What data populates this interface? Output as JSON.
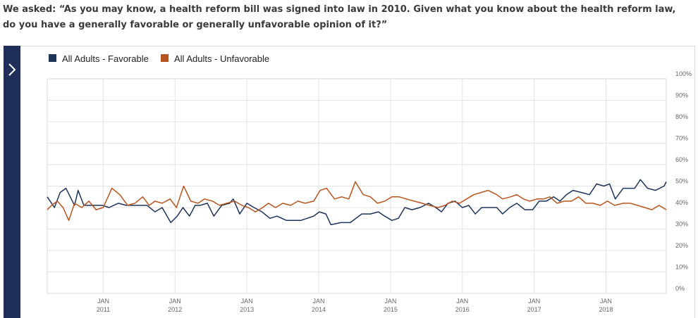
{
  "question": "We asked: “As you may know, a health reform bill was signed into law in 2010. Given what you know about the health reform law, do you have a generally favorable or generally unfavorable opinion of it?”",
  "colors": {
    "favorable": "#1c3458",
    "unfavorable": "#b5541f",
    "sidebar": "#1f2f5a",
    "grid": "#e3e3e3"
  },
  "sidebar_icon": "chevron-right-icon",
  "chart_data": {
    "type": "line",
    "legend_position": "top-left",
    "grid": true,
    "ylim": [
      0,
      100
    ],
    "y_tick_labels": [
      "0%",
      "10%",
      "20%",
      "30%",
      "40%",
      "50%",
      "60%",
      "70%",
      "80%",
      "90%",
      "100%"
    ],
    "x_tick_labels": [
      {
        "month": "JAN",
        "year": "2011",
        "x": 2011.0
      },
      {
        "month": "JAN",
        "year": "2012",
        "x": 2012.0
      },
      {
        "month": "JAN",
        "year": "2013",
        "x": 2013.0
      },
      {
        "month": "JAN",
        "year": "2014",
        "x": 2014.0
      },
      {
        "month": "JAN",
        "year": "2015",
        "x": 2015.0
      },
      {
        "month": "JAN",
        "year": "2016",
        "x": 2016.0
      },
      {
        "month": "JAN",
        "year": "2017",
        "x": 2017.0
      },
      {
        "month": "JAN",
        "year": "2018",
        "x": 2018.0
      }
    ],
    "xlim": [
      2010.22,
      2018.84
    ],
    "series": [
      {
        "name": "All Adults - Favorable",
        "color": "#1c3458",
        "x": [
          2010.22,
          2010.32,
          2010.4,
          2010.48,
          2010.6,
          2010.65,
          2010.73,
          2010.86,
          2010.99,
          2011.08,
          2011.21,
          2011.32,
          2011.47,
          2011.61,
          2011.72,
          2011.82,
          2011.94,
          2012.03,
          2012.11,
          2012.2,
          2012.28,
          2012.35,
          2012.45,
          2012.54,
          2012.65,
          2012.76,
          2012.81,
          2012.9,
          2013.0,
          2013.1,
          2013.21,
          2013.32,
          2013.42,
          2013.55,
          2013.67,
          2013.75,
          2013.84,
          2013.93,
          2014.01,
          2014.1,
          2014.17,
          2014.31,
          2014.44,
          2014.6,
          2014.72,
          2014.83,
          2014.92,
          2015.02,
          2015.11,
          2015.2,
          2015.3,
          2015.41,
          2015.53,
          2015.63,
          2015.71,
          2015.8,
          2015.9,
          2016.0,
          2016.09,
          2016.18,
          2016.27,
          2016.37,
          2016.48,
          2016.56,
          2016.66,
          2016.76,
          2016.87,
          2016.98,
          2017.07,
          2017.17,
          2017.27,
          2017.36,
          2017.45,
          2017.54,
          2017.66,
          2017.77,
          2017.87,
          2017.97,
          2018.05,
          2018.13,
          2018.24,
          2018.32,
          2018.4,
          2018.48,
          2018.58,
          2018.69,
          2018.81,
          2018.84
        ],
        "values": [
          45,
          40,
          47,
          49,
          41,
          48,
          41,
          41,
          41,
          40,
          42,
          41,
          41,
          41,
          38,
          40,
          33,
          36,
          40,
          36,
          41,
          41,
          42,
          36,
          41,
          42,
          44,
          37,
          42,
          40,
          38,
          35,
          36,
          34,
          34,
          34,
          35,
          36,
          38,
          37,
          32,
          33,
          33,
          37,
          37,
          38,
          36,
          34,
          35,
          40,
          39,
          40,
          42,
          40,
          38,
          42,
          43,
          40,
          41,
          37,
          40,
          40,
          40,
          37,
          40,
          42,
          39,
          39,
          43,
          43,
          45,
          43,
          46,
          48,
          47,
          46,
          51,
          50,
          51,
          44,
          49,
          49,
          49,
          53,
          49,
          48,
          50,
          52
        ]
      },
      {
        "name": "All Adults - Unfavorable",
        "color": "#b5541f",
        "x": [
          2010.22,
          2010.28,
          2010.36,
          2010.44,
          2010.52,
          2010.6,
          2010.7,
          2010.8,
          2010.9,
          2011.0,
          2011.12,
          2011.23,
          2011.34,
          2011.44,
          2011.55,
          2011.64,
          2011.72,
          2011.82,
          2011.93,
          2012.02,
          2012.12,
          2012.22,
          2012.32,
          2012.41,
          2012.52,
          2012.62,
          2012.72,
          2012.83,
          2012.93,
          2013.02,
          2013.12,
          2013.22,
          2013.3,
          2013.4,
          2013.5,
          2013.61,
          2013.71,
          2013.81,
          2013.93,
          2014.02,
          2014.11,
          2014.22,
          2014.32,
          2014.42,
          2014.51,
          2014.62,
          2014.72,
          2014.82,
          2014.92,
          2015.02,
          2015.12,
          2015.22,
          2015.33,
          2015.44,
          2015.54,
          2015.66,
          2015.76,
          2015.86,
          2015.96,
          2016.06,
          2016.16,
          2016.26,
          2016.36,
          2016.48,
          2016.56,
          2016.67,
          2016.76,
          2016.85,
          2016.94,
          2017.04,
          2017.13,
          2017.22,
          2017.32,
          2017.42,
          2017.52,
          2017.62,
          2017.72,
          2017.82,
          2017.92,
          2018.02,
          2018.12,
          2018.24,
          2018.34,
          2018.44,
          2018.54,
          2018.64,
          2018.74,
          2018.84
        ],
        "values": [
          39,
          41,
          43,
          40,
          34,
          42,
          40,
          43,
          39,
          40,
          49,
          46,
          41,
          42,
          45,
          41,
          43,
          42,
          44,
          40,
          50,
          43,
          42,
          44,
          43,
          41,
          42,
          43,
          41,
          40,
          38,
          40,
          42,
          40,
          42,
          41,
          43,
          42,
          43,
          48,
          49,
          44,
          45,
          44,
          52,
          46,
          45,
          42,
          43,
          45,
          45,
          44,
          43,
          42,
          41,
          40,
          41,
          43,
          42,
          44,
          46,
          47,
          48,
          46,
          44,
          45,
          46,
          44,
          43,
          44,
          44,
          45,
          42,
          43,
          43,
          45,
          42,
          42,
          41,
          43,
          41,
          42,
          42,
          41,
          40,
          39,
          41,
          39
        ]
      }
    ]
  }
}
